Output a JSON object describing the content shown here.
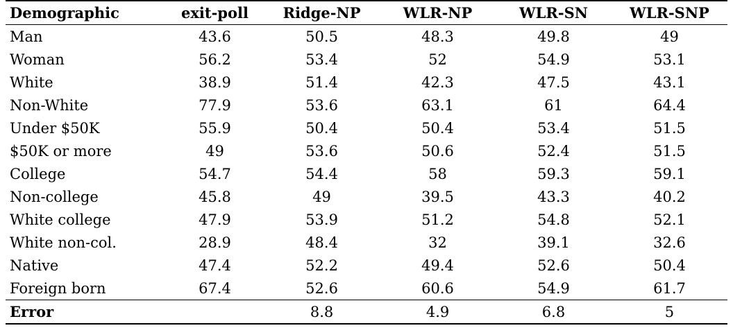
{
  "table": {
    "headers": [
      "Demographic",
      "exit-poll",
      "Ridge-NP",
      "WLR-NP",
      "WLR-SN",
      "WLR-SNP"
    ],
    "rows": [
      [
        "Man",
        "43.6",
        "50.5",
        "48.3",
        "49.8",
        "49"
      ],
      [
        "Woman",
        "56.2",
        "53.4",
        "52",
        "54.9",
        "53.1"
      ],
      [
        "White",
        "38.9",
        "51.4",
        "42.3",
        "47.5",
        "43.1"
      ],
      [
        "Non-White",
        "77.9",
        "53.6",
        "63.1",
        "61",
        "64.4"
      ],
      [
        "Under $50K",
        "55.9",
        "50.4",
        "50.4",
        "53.4",
        "51.5"
      ],
      [
        "$50K or more",
        "49",
        "53.6",
        "50.6",
        "52.4",
        "51.5"
      ],
      [
        "College",
        "54.7",
        "54.4",
        "58",
        "59.3",
        "59.1"
      ],
      [
        "Non-college",
        "45.8",
        "49",
        "39.5",
        "43.3",
        "40.2"
      ],
      [
        "White college",
        "47.9",
        "53.9",
        "51.2",
        "54.8",
        "52.1"
      ],
      [
        "White non-col.",
        "28.9",
        "48.4",
        "32",
        "39.1",
        "32.6"
      ],
      [
        "Native",
        "47.4",
        "52.2",
        "49.4",
        "52.6",
        "50.4"
      ],
      [
        "Foreign born",
        "67.4",
        "52.6",
        "60.6",
        "54.9",
        "61.7"
      ]
    ],
    "error_row": [
      "Error",
      "",
      "8.8",
      "4.9",
      "6.8",
      "5"
    ]
  }
}
